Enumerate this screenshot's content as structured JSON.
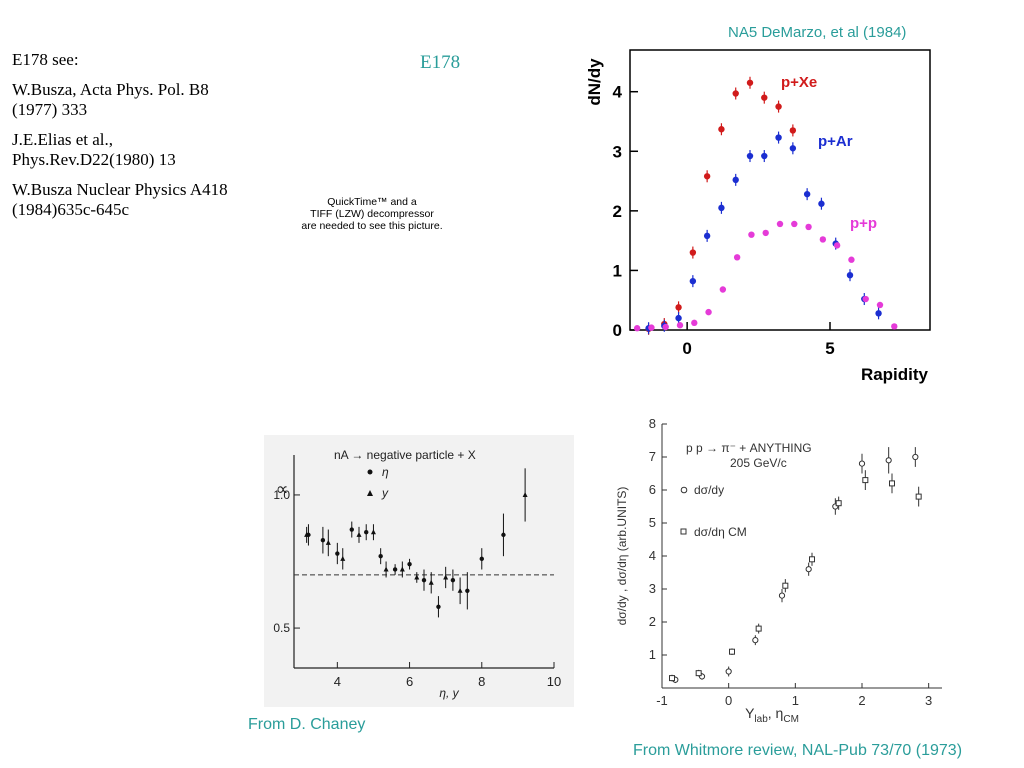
{
  "references": {
    "heading": "E178 see:",
    "items": [
      "W.Busza, Acta Phys. Pol. B8 (1977) 333",
      "J.E.Elias et al., Phys.Rev.D22(1980) 13",
      "W.Busza Nuclear Physics A418 (1984)635c-645c"
    ]
  },
  "slide_title": "E178",
  "quicktime_placeholder": [
    "QuickTime™ and a",
    "TIFF (LZW) decompressor",
    "are needed to see this picture."
  ],
  "captions": {
    "top_right": "NA5 DeMarzo, et al (1984)",
    "bottom_left": "From D. Chaney",
    "bottom_right": "From Whitmore review, NAL-Pub 73/70 (1973)"
  },
  "chart_data": [
    {
      "type": "scatter",
      "xlabel": "Rapidity",
      "ylabel": "dN/dy",
      "xlim": [
        -2,
        8.5
      ],
      "ylim": [
        0,
        4.7
      ],
      "xticks": [
        0,
        5
      ],
      "yticks": [
        0,
        1,
        2,
        3,
        4
      ],
      "series": [
        {
          "name": "p+Xe",
          "color": "#d11b1b",
          "x": [
            -1.35,
            -0.8,
            -0.3,
            0.2,
            0.7,
            1.2,
            1.7,
            2.2,
            2.7,
            3.2,
            3.7
          ],
          "y": [
            0.02,
            0.1,
            0.38,
            1.3,
            2.58,
            3.37,
            3.97,
            4.15,
            3.9,
            3.75,
            3.35
          ]
        },
        {
          "name": "p+Ar",
          "color": "#1b2ed1",
          "x": [
            -1.35,
            -0.8,
            -0.3,
            0.2,
            0.7,
            1.2,
            1.7,
            2.2,
            2.7,
            3.2,
            3.7,
            4.2,
            4.7,
            5.2,
            5.7,
            6.2,
            6.7
          ],
          "y": [
            0.03,
            0.07,
            0.2,
            0.82,
            1.58,
            2.05,
            2.52,
            2.92,
            2.92,
            3.23,
            3.05,
            2.28,
            2.12,
            1.45,
            0.92,
            0.52,
            0.28
          ]
        },
        {
          "name": "p+p",
          "color": "#e53bd8",
          "x": [
            -1.75,
            -1.25,
            -0.75,
            -0.25,
            0.25,
            0.75,
            1.25,
            1.75,
            2.25,
            2.75,
            3.25,
            3.75,
            4.25,
            4.75,
            5.25,
            5.75,
            6.25,
            6.75,
            7.25
          ],
          "y": [
            0.03,
            0.04,
            0.05,
            0.08,
            0.12,
            0.3,
            0.68,
            1.22,
            1.6,
            1.63,
            1.78,
            1.78,
            1.73,
            1.52,
            1.42,
            1.18,
            0.52,
            0.42,
            0.06
          ]
        }
      ]
    },
    {
      "type": "scatter",
      "title": "nA → negative particle + X",
      "xlabel": "η, y",
      "ylabel": "∝",
      "xlim": [
        2.8,
        10
      ],
      "ylim": [
        0.35,
        1.15
      ],
      "xticks": [
        4,
        6,
        8,
        10
      ],
      "yticks": [
        0.5,
        1.0
      ],
      "dashed_line_y": 0.7,
      "series": [
        {
          "name": "η",
          "marker": "dot",
          "x": [
            3.2,
            3.6,
            4.0,
            4.4,
            4.8,
            5.2,
            5.6,
            6.0,
            6.4,
            6.8,
            7.2,
            7.6,
            8.0,
            8.6
          ],
          "y": [
            0.85,
            0.83,
            0.78,
            0.87,
            0.86,
            0.77,
            0.72,
            0.74,
            0.68,
            0.58,
            0.68,
            0.64,
            0.76,
            0.85
          ],
          "err": [
            0.04,
            0.05,
            0.04,
            0.03,
            0.03,
            0.03,
            0.02,
            0.02,
            0.04,
            0.04,
            0.04,
            0.07,
            0.04,
            0.08
          ]
        },
        {
          "name": "y",
          "marker": "triangle",
          "x": [
            3.15,
            3.75,
            4.15,
            4.6,
            5.0,
            5.35,
            5.8,
            6.2,
            6.6,
            7.0,
            7.4,
            9.2
          ],
          "y": [
            0.85,
            0.82,
            0.76,
            0.85,
            0.86,
            0.72,
            0.72,
            0.69,
            0.67,
            0.69,
            0.64,
            1.0
          ],
          "err": [
            0.03,
            0.05,
            0.04,
            0.03,
            0.03,
            0.03,
            0.03,
            0.02,
            0.04,
            0.04,
            0.05,
            0.1
          ]
        }
      ]
    },
    {
      "type": "scatter",
      "annotations": [
        "p p → π⁻ + ANYTHING",
        "205 GeV/c"
      ],
      "xlabel": "Y",
      "xlabel_sub": "lab",
      "xlabel_2": ", η",
      "xlabel_2_sub": "CM",
      "ylabel": "dσ/dy , dσ/dη (arb.UNITS)",
      "xlim": [
        -1,
        3.2
      ],
      "ylim": [
        0,
        8
      ],
      "xticks": [
        -1,
        0,
        1,
        2,
        3
      ],
      "yticks": [
        1,
        2,
        3,
        4,
        5,
        6,
        7,
        8
      ],
      "series": [
        {
          "name": "dσ/dy",
          "marker": "open-circle",
          "x": [
            -0.8,
            -0.4,
            0.0,
            0.4,
            0.8,
            1.2,
            1.6,
            2.0,
            2.4,
            2.8
          ],
          "y": [
            0.25,
            0.35,
            0.5,
            1.45,
            2.8,
            3.6,
            5.5,
            6.8,
            6.9,
            7.0
          ],
          "err": [
            0.1,
            0.1,
            0.15,
            0.15,
            0.2,
            0.2,
            0.25,
            0.3,
            0.4,
            0.3
          ]
        },
        {
          "name": "dσ/dη CM",
          "marker": "open-square",
          "x": [
            -0.85,
            -0.45,
            0.05,
            0.45,
            0.85,
            1.25,
            1.65,
            2.05,
            2.45,
            2.85
          ],
          "y": [
            0.3,
            0.45,
            1.1,
            1.8,
            3.1,
            3.9,
            5.6,
            6.3,
            6.2,
            5.8
          ],
          "err": [
            0.1,
            0.1,
            0.1,
            0.15,
            0.2,
            0.2,
            0.2,
            0.3,
            0.3,
            0.3
          ]
        }
      ]
    }
  ]
}
